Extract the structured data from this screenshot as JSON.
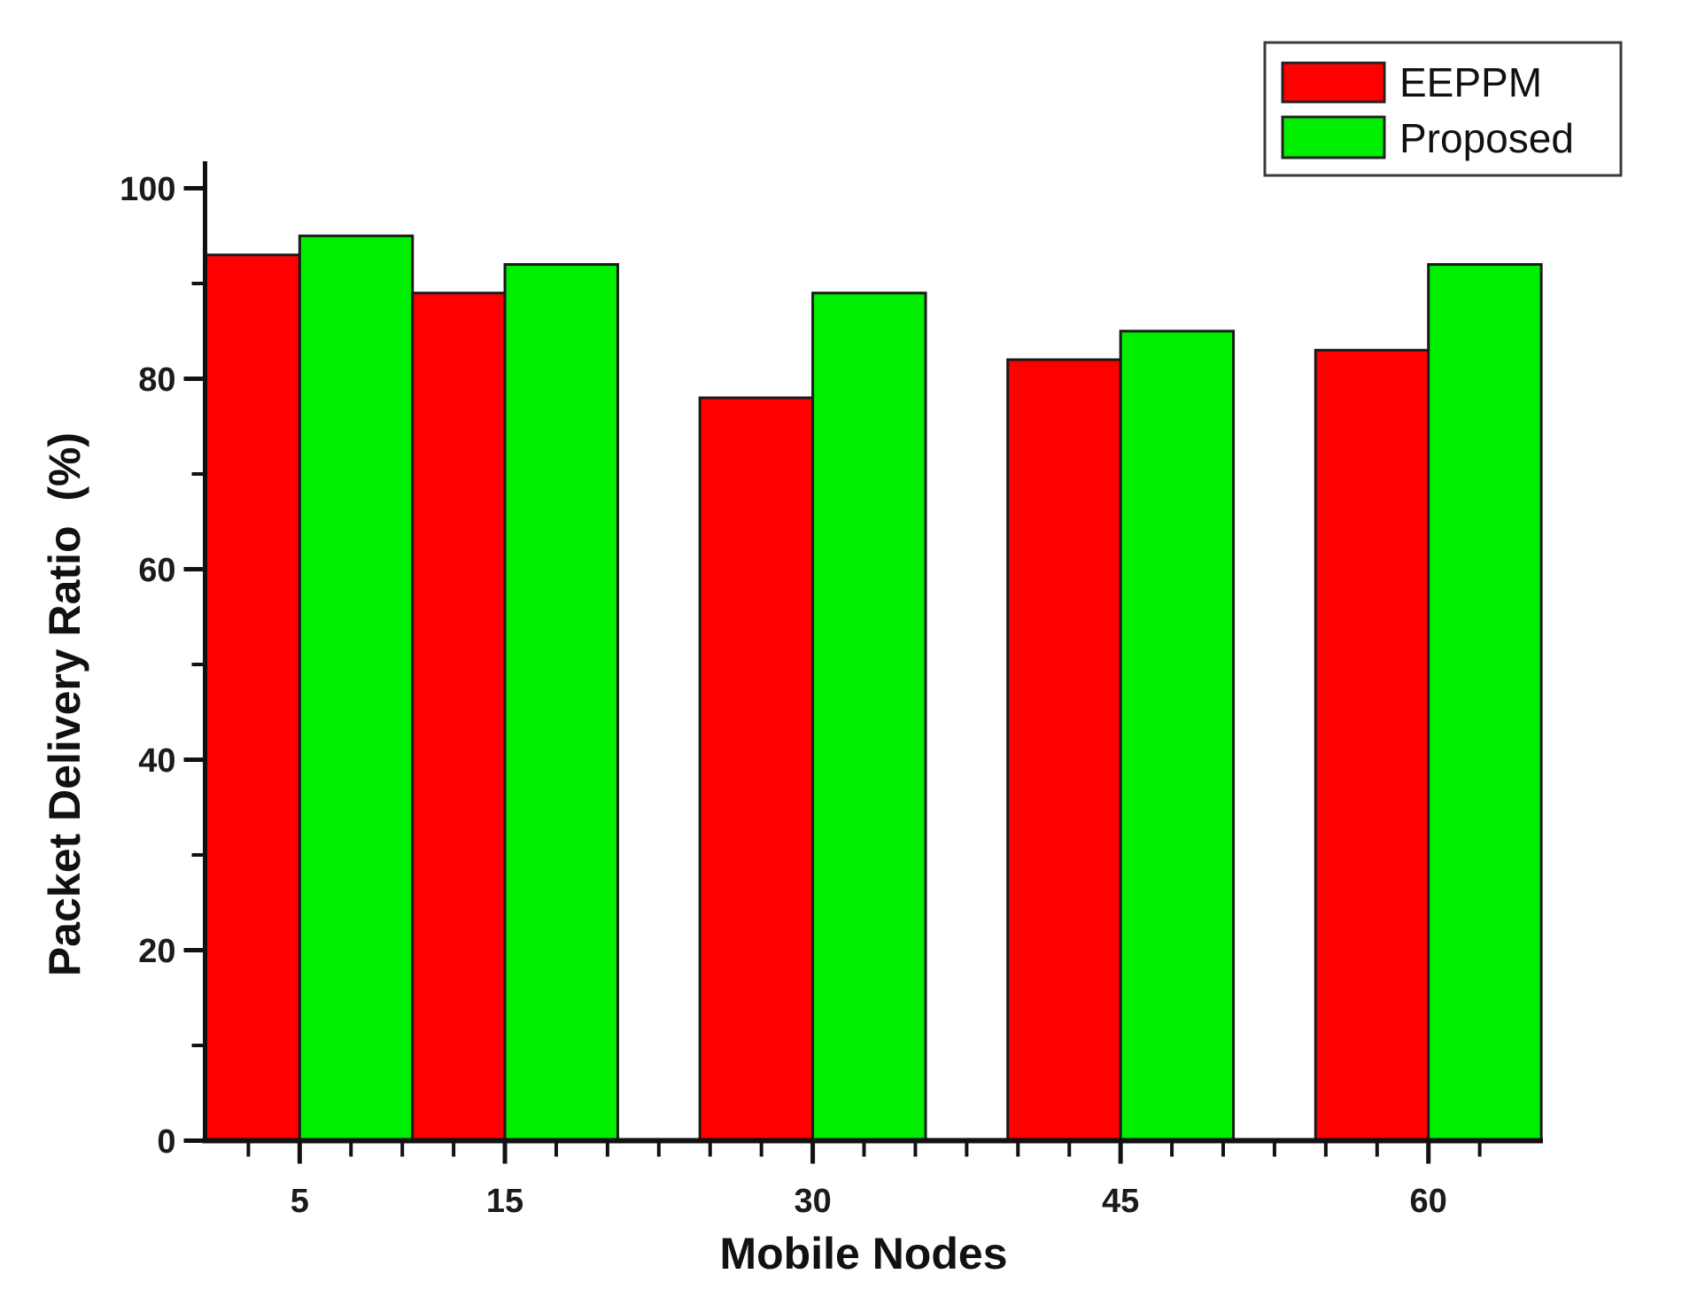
{
  "chart_data": {
    "type": "bar",
    "title": "",
    "xlabel": "Mobile Nodes",
    "ylabel": "Packet Delivery Ratio  (%)",
    "categories": [
      5,
      15,
      30,
      45,
      60
    ],
    "series": [
      {
        "name": "EEPPM",
        "color": "#FE0000",
        "values": [
          93,
          89,
          78,
          82,
          83
        ]
      },
      {
        "name": "Proposed",
        "color": "#00EE00",
        "values": [
          95,
          92,
          89,
          85,
          92
        ]
      }
    ],
    "ylim": [
      0,
      100
    ],
    "y_major_ticks": [
      0,
      20,
      40,
      60,
      80,
      100
    ],
    "y_minor_ticks": [
      10,
      30,
      50,
      70,
      90
    ],
    "x_range": [
      0.5,
      65.5
    ],
    "x_minor_tick_step": 2.5,
    "bar_width_units": 5.5,
    "bar_border_color": "#1a1a1a",
    "axis_color": "#111111",
    "legend_position": "top-right",
    "grid": false
  }
}
